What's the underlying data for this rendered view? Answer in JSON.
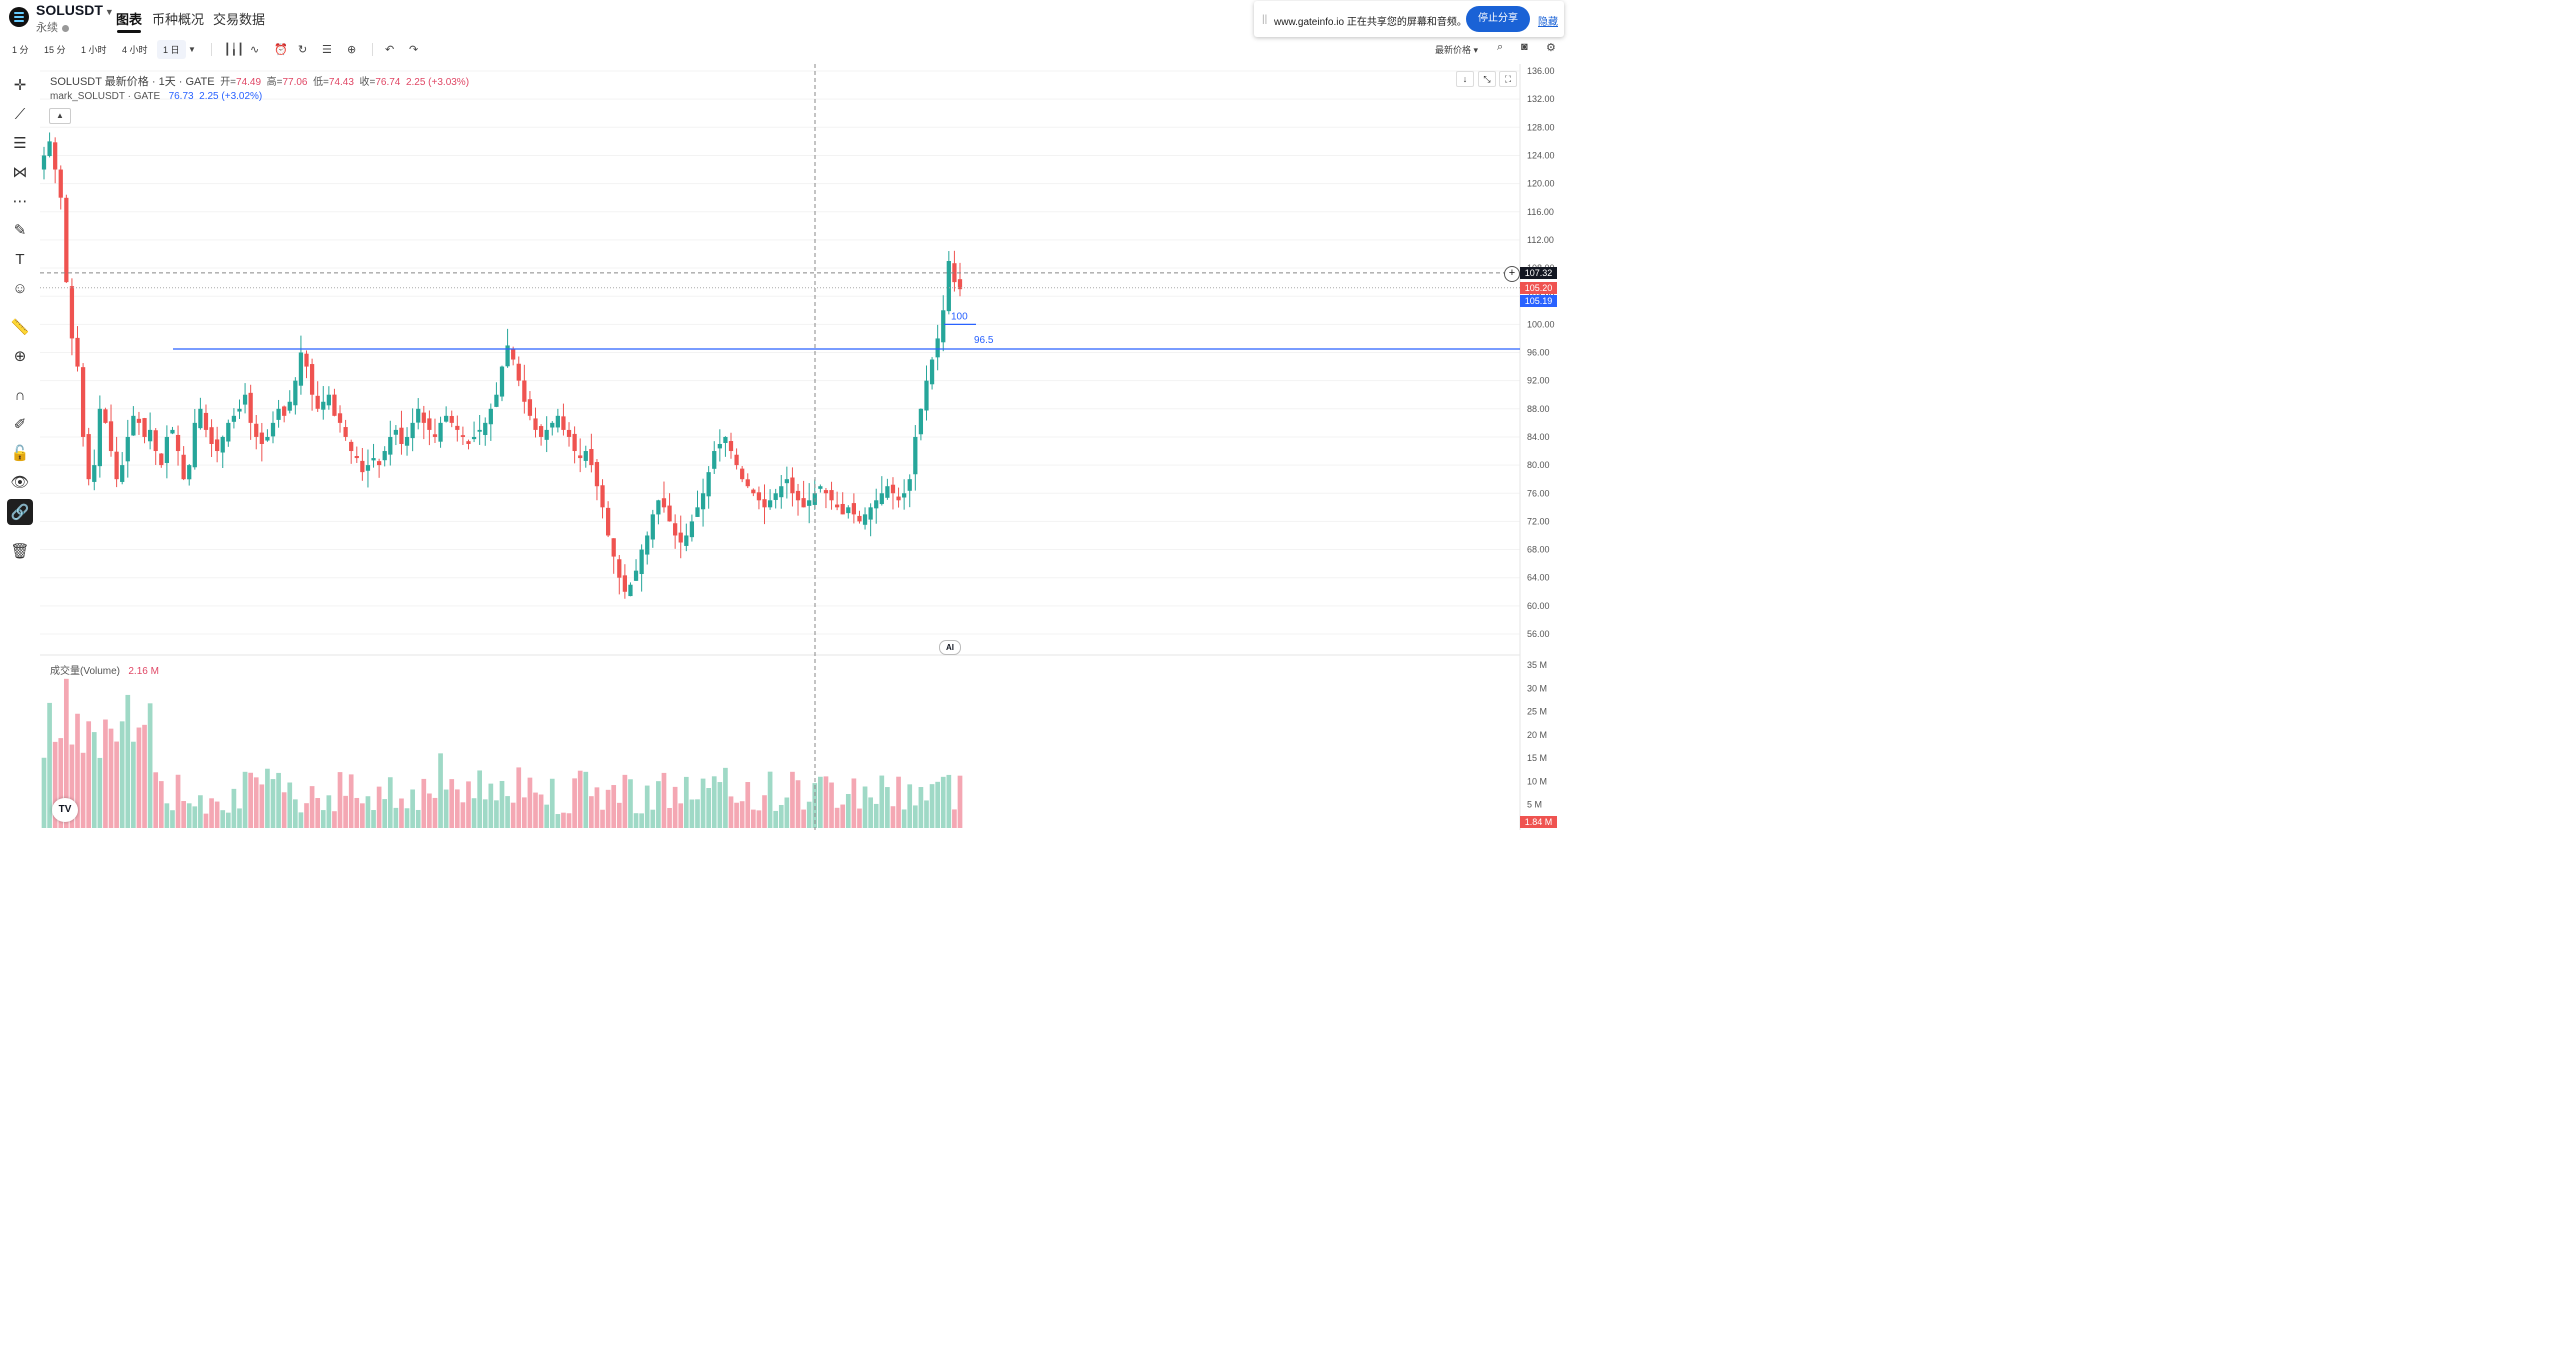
{
  "header": {
    "symbol": "SOLUSDT",
    "contract_type": "永续",
    "tabs": [
      {
        "label": "图表",
        "active": true
      },
      {
        "label": "币种概况",
        "active": false
      },
      {
        "label": "交易数据",
        "active": false
      }
    ]
  },
  "share_banner": {
    "message": "www.gateinfo.io 正在共享您的屏幕和音频。",
    "stop_label": "停止分享",
    "hide_label": "隐藏"
  },
  "toolbar": {
    "intervals": [
      {
        "label": "1 分"
      },
      {
        "label": "15 分"
      },
      {
        "label": "1 小时"
      },
      {
        "label": "4 小时"
      },
      {
        "label": "1 日",
        "selected": true
      }
    ],
    "price_source_label": "最新价格"
  },
  "legend": {
    "main_title": "SOLUSDT 最新价格 · 1天 · GATE",
    "open_label": "开=",
    "open_value": "74.49",
    "high_label": "高=",
    "high_value": "77.06",
    "low_label": "低=",
    "low_value": "74.43",
    "close_label": "收=",
    "close_value": "76.74",
    "change": "2.25 (+3.03%)",
    "mark_title": "mark_SOLUSDT · GATE",
    "mark_value": "76.73",
    "mark_change": "2.25 (+3.02%)",
    "volume_title": "成交量(Volume)",
    "volume_value": "2.16 M"
  },
  "price_labels": {
    "crosshair": "107.32",
    "last": "105.20",
    "mark": "105.19",
    "volume_last": "1.84 M"
  },
  "drawings": {
    "line_100_label": "100",
    "line_96_label": "96.5"
  },
  "ai_label": "AI",
  "tv_label": "TV",
  "colors": {
    "up": "#26a69a",
    "down": "#ef5350",
    "up_vol": "#9fd9c6",
    "down_vol": "#f4a7b3",
    "hline": "#2962ff",
    "accent": "#1a62d6"
  },
  "chart_data": {
    "type": "candlestick",
    "interval": "1D",
    "price_axis": {
      "ticks": [
        "136.00",
        "132.00",
        "128.00",
        "124.00",
        "120.00",
        "116.00",
        "112.00",
        "108.00",
        "104.00",
        "100.00",
        "96.00",
        "92.00",
        "88.00",
        "84.00",
        "80.00",
        "76.00",
        "72.00",
        "68.00",
        "64.00",
        "60.00",
        "56.00"
      ],
      "range": [
        52,
        138
      ]
    },
    "volume_axis": {
      "ticks": [
        "35 M",
        "30 M",
        "25 M",
        "20 M",
        "15 M",
        "10 M",
        "5 M"
      ],
      "range": [
        0,
        36
      ]
    },
    "horizontal_lines": [
      {
        "price": 96.5,
        "label": "96.5"
      },
      {
        "price": 100,
        "label": "100"
      }
    ],
    "close_series": [
      124,
      126,
      122,
      118,
      106,
      98,
      94,
      84,
      78,
      80,
      88,
      86,
      82,
      78,
      80,
      84,
      87,
      86,
      84,
      85,
      82,
      80,
      84,
      85,
      82,
      78,
      80,
      86,
      88,
      85,
      83,
      82,
      84,
      86,
      87,
      88,
      90,
      86,
      84,
      83,
      84,
      86,
      88,
      87,
      89,
      92,
      96,
      94,
      90,
      88,
      89,
      90,
      87,
      86,
      84,
      82,
      81,
      79,
      80,
      81,
      80,
      82,
      84,
      85,
      83,
      84,
      86,
      88,
      86,
      85,
      84,
      86,
      87,
      86,
      85,
      84,
      83,
      84,
      85,
      86,
      88,
      90,
      94,
      97,
      95,
      92,
      89,
      87,
      85,
      84,
      85,
      86,
      87,
      85,
      84,
      82,
      81,
      82,
      80,
      77,
      74,
      70,
      67,
      64,
      62,
      63,
      65,
      68,
      70,
      73,
      75,
      74,
      72,
      70,
      69,
      70,
      72,
      74,
      76,
      79,
      82,
      83,
      84,
      82,
      80,
      78,
      77,
      76,
      75,
      74,
      75,
      76,
      77,
      78,
      76,
      75,
      74,
      75,
      76,
      77,
      76,
      75,
      74,
      73,
      74,
      73,
      72,
      73,
      74,
      75,
      76,
      77,
      76,
      75,
      76,
      78,
      84,
      88,
      92,
      95,
      98,
      102,
      109,
      106,
      105
    ]
  }
}
